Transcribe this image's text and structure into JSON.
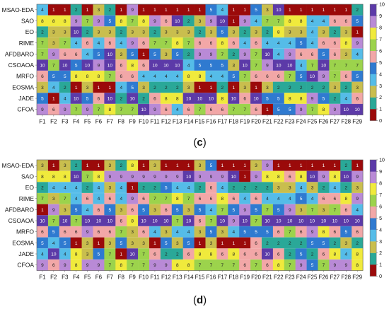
{
  "colors": {
    "1": "#9b0a0a",
    "2": "#2aa898",
    "3": "#c9be4e",
    "4": "#55bce8",
    "5": "#2f7ad0",
    "6": "#f2a7a7",
    "7": "#9cd34c",
    "8": "#f0ea3c",
    "9": "#b98ad6",
    "10": "#5c3aa8"
  },
  "chart_data": [
    {
      "type": "heatmap",
      "caption": "(c)",
      "rows": [
        "MSAO-EDA",
        "SAO",
        "EO",
        "RIME",
        "AFDBARO",
        "CSOAOA",
        "MRFO",
        "EOSMA",
        "JADE",
        "CFOA"
      ],
      "columns": [
        "F1",
        "F2",
        "F3",
        "F4",
        "F5",
        "F6",
        "F7",
        "F8",
        "F9",
        "F10",
        "F11",
        "F12",
        "F13",
        "F14",
        "F15",
        "F16",
        "F17",
        "F18",
        "F19",
        "F20",
        "F21",
        "F22",
        "F23",
        "F24",
        "F25",
        "F26",
        "F27",
        "F28",
        "F29"
      ],
      "colorbar": {
        "min": 0,
        "max": 10,
        "ticks": [
          0,
          1,
          2,
          3,
          4,
          5,
          6,
          7,
          8,
          9,
          10
        ]
      },
      "values": [
        [
          4,
          1,
          1,
          2,
          1,
          3,
          2,
          1,
          9,
          1,
          1,
          1,
          1,
          1,
          1,
          5,
          4,
          1,
          1,
          5,
          3,
          10,
          1,
          1,
          1,
          1,
          1,
          1,
          2
        ],
        [
          8,
          8,
          8,
          9,
          7,
          9,
          5,
          8,
          7,
          8,
          9,
          6,
          10,
          2,
          3,
          9,
          10,
          1,
          9,
          4,
          7,
          7,
          8,
          8,
          4,
          4,
          6,
          6,
          5
        ],
        [
          2,
          3,
          3,
          10,
          2,
          3,
          3,
          2,
          3,
          3,
          2,
          3,
          3,
          3,
          2,
          3,
          5,
          3,
          2,
          3,
          2,
          8,
          3,
          3,
          4,
          3,
          2,
          3,
          1
        ],
        [
          7,
          3,
          7,
          4,
          6,
          4,
          6,
          4,
          9,
          6,
          7,
          7,
          8,
          7,
          6,
          6,
          8,
          6,
          4,
          6,
          4,
          4,
          4,
          5,
          4,
          6,
          6,
          8,
          9
        ],
        [
          7,
          9,
          6,
          6,
          4,
          5,
          10,
          3,
          5,
          1,
          5,
          3,
          5,
          2,
          9,
          9,
          7,
          2,
          9,
          7,
          10,
          4,
          9,
          6,
          6,
          5,
          6,
          3,
          4
        ],
        [
          10,
          7,
          10,
          5,
          10,
          9,
          10,
          6,
          8,
          6,
          10,
          10,
          10,
          4,
          5,
          5,
          5,
          3,
          10,
          7,
          9,
          10,
          10,
          4,
          7,
          10,
          7,
          7,
          7
        ],
        [
          6,
          5,
          5,
          8,
          8,
          8,
          7,
          6,
          6,
          4,
          4,
          4,
          4,
          8,
          8,
          4,
          4,
          5,
          7,
          6,
          6,
          6,
          7,
          5,
          10,
          9,
          7,
          6,
          5
        ],
        [
          3,
          4,
          2,
          1,
          3,
          1,
          1,
          4,
          5,
          3,
          2,
          2,
          2,
          3,
          1,
          1,
          2,
          1,
          3,
          1,
          3,
          2,
          2,
          2,
          2,
          2,
          3,
          2,
          3
        ],
        [
          5,
          1,
          4,
          10,
          5,
          6,
          10,
          2,
          10,
          2,
          6,
          8,
          8,
          10,
          10,
          10,
          8,
          10,
          6,
          10,
          5,
          5,
          8,
          8,
          9,
          5,
          2,
          4,
          6
        ],
        [
          9,
          6,
          9,
          7,
          9,
          7,
          8,
          7,
          7,
          10,
          9,
          6,
          4,
          6,
          7,
          6,
          6,
          7,
          7,
          6,
          1,
          5,
          5,
          9,
          7,
          8,
          9,
          10,
          10
        ]
      ]
    },
    {
      "type": "heatmap",
      "caption": "(d)",
      "rows": [
        "MSAO-EDA",
        "SAO",
        "EO",
        "RIME",
        "AFDBARO",
        "CSOAOA",
        "MRFO",
        "EOSMA",
        "JADE",
        "CFOA"
      ],
      "columns": [
        "F1",
        "F2",
        "F3",
        "F4",
        "F5",
        "F6",
        "F7",
        "F8",
        "F9",
        "F10",
        "F11",
        "F12",
        "F13",
        "F14",
        "F15",
        "F16",
        "F17",
        "F18",
        "F19",
        "F20",
        "F21",
        "F22",
        "F23",
        "F24",
        "F25",
        "F26",
        "F27",
        "F28",
        "F29"
      ],
      "colorbar": {
        "min": 0,
        "max": 10,
        "ticks": [
          0,
          1,
          2,
          3,
          4,
          5,
          6,
          7,
          8,
          9,
          10
        ]
      },
      "values": [
        [
          3,
          1,
          3,
          2,
          1,
          1,
          3,
          2,
          8,
          1,
          3,
          1,
          1,
          1,
          3,
          5,
          1,
          1,
          1,
          3,
          9,
          1,
          1,
          1,
          1,
          1,
          1,
          2,
          1
        ],
        [
          8,
          8,
          8,
          10,
          7,
          8,
          9,
          9,
          9,
          9,
          9,
          9,
          9,
          10,
          9,
          9,
          9,
          10,
          1,
          9,
          8,
          8,
          6,
          8,
          10,
          9,
          8,
          10,
          9
        ],
        [
          2,
          4,
          4,
          4,
          2,
          4,
          3,
          4,
          1,
          2,
          2,
          5,
          4,
          4,
          2,
          6,
          4,
          2,
          2,
          2,
          2,
          3,
          3,
          4,
          3,
          2,
          4,
          2,
          3
        ],
        [
          7,
          3,
          7,
          4,
          6,
          4,
          6,
          4,
          9,
          6,
          7,
          7,
          8,
          7,
          6,
          6,
          8,
          6,
          4,
          6,
          4,
          4,
          4,
          5,
          4,
          6,
          6,
          8,
          9
        ],
        [
          1,
          9,
          3,
          5,
          4,
          6,
          5,
          3,
          6,
          5,
          3,
          6,
          5,
          3,
          5,
          4,
          7,
          5,
          9,
          5,
          7,
          5,
          9,
          3,
          7,
          3,
          7,
          6,
          4
        ],
        [
          10,
          7,
          10,
          7,
          10,
          10,
          10,
          6,
          8,
          10,
          10,
          10,
          7,
          10,
          6,
          7,
          10,
          9,
          10,
          7,
          10,
          10,
          10,
          10,
          10,
          10,
          10,
          10,
          10
        ],
        [
          6,
          5,
          6,
          6,
          9,
          6,
          6,
          7,
          3,
          6,
          4,
          3,
          4,
          4,
          3,
          5,
          3,
          4,
          5,
          5,
          5,
          6,
          7,
          6,
          9,
          8,
          6,
          5,
          6
        ],
        [
          5,
          4,
          5,
          1,
          3,
          1,
          3,
          5,
          3,
          3,
          1,
          5,
          3,
          5,
          1,
          3,
          1,
          1,
          1,
          6,
          2,
          2,
          2,
          2,
          5,
          5,
          2,
          3,
          2
        ],
        [
          4,
          10,
          4,
          8,
          3,
          5,
          7,
          1,
          10,
          7,
          6,
          2,
          2,
          6,
          8,
          8,
          6,
          8,
          6,
          6,
          10,
          6,
          2,
          5,
          2,
          6,
          8,
          4,
          8
        ],
        [
          9,
          6,
          9,
          8,
          9,
          9,
          7,
          8,
          7,
          7,
          9,
          9,
          8,
          8,
          7,
          7,
          7,
          7,
          6,
          7,
          6,
          8,
          7,
          9,
          5,
          7,
          9,
          9,
          8
        ]
      ]
    }
  ]
}
